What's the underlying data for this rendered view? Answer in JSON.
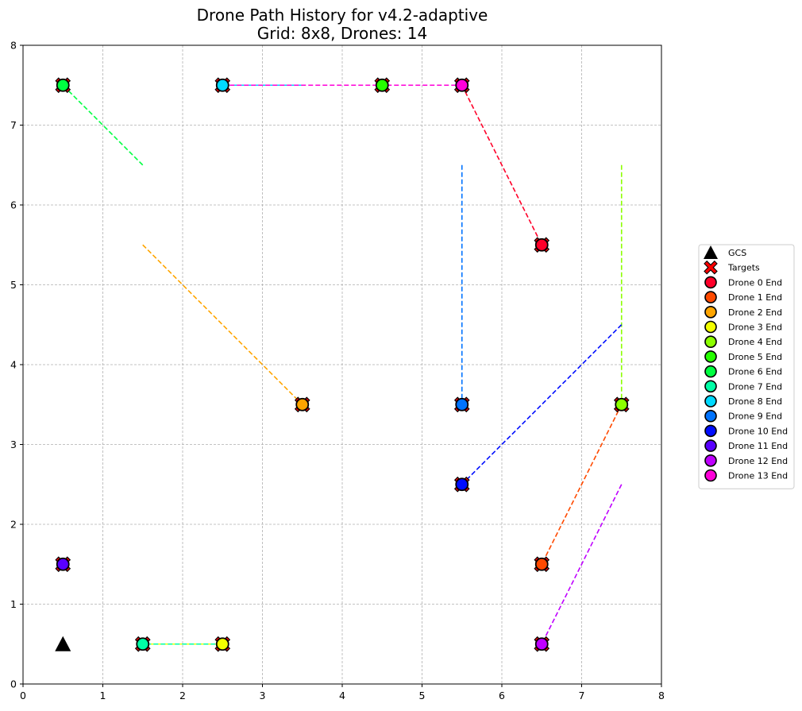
{
  "chart_data": {
    "type": "scatter",
    "title_line1": "Drone Path History for v4.2-adaptive",
    "title_line2": "Grid: 8x8, Drones: 14",
    "xlabel": "",
    "ylabel": "",
    "xlim": [
      0,
      8
    ],
    "ylim": [
      0,
      8
    ],
    "xticks": [
      0,
      1,
      2,
      3,
      4,
      5,
      6,
      7,
      8
    ],
    "yticks": [
      0,
      1,
      2,
      3,
      4,
      5,
      6,
      7,
      8
    ],
    "xtick_labels": [
      "0",
      "1",
      "2",
      "3",
      "4",
      "5",
      "6",
      "7",
      "8"
    ],
    "ytick_labels": [
      "0",
      "1",
      "2",
      "3",
      "4",
      "5",
      "6",
      "7",
      "8"
    ],
    "grid": true,
    "legend_position": "outside right, vertically centered",
    "gcs": {
      "x": 0.5,
      "y": 0.5,
      "color": "#000000",
      "label": "GCS"
    },
    "targets": {
      "label": "Targets",
      "color": "#ff0000",
      "points": [
        [
          0.5,
          7.5
        ],
        [
          2.5,
          7.5
        ],
        [
          4.5,
          7.5
        ],
        [
          5.5,
          7.5
        ],
        [
          6.5,
          5.5
        ],
        [
          3.5,
          3.5
        ],
        [
          5.5,
          3.5
        ],
        [
          7.5,
          3.5
        ],
        [
          5.5,
          2.5
        ],
        [
          0.5,
          1.5
        ],
        [
          6.5,
          1.5
        ],
        [
          1.5,
          0.5
        ],
        [
          2.5,
          0.5
        ],
        [
          6.5,
          0.5
        ]
      ]
    },
    "series": [
      {
        "name": "Drone 0 End",
        "color": "#ff0029",
        "path": [
          [
            5.5,
            7.5
          ],
          [
            6.5,
            5.5
          ]
        ]
      },
      {
        "name": "Drone 1 End",
        "color": "#ff4a00",
        "path": [
          [
            7.5,
            3.5
          ],
          [
            6.5,
            1.5
          ]
        ]
      },
      {
        "name": "Drone 2 End",
        "color": "#ffa500",
        "path": [
          [
            1.5,
            5.5
          ],
          [
            3.5,
            3.5
          ]
        ]
      },
      {
        "name": "Drone 3 End",
        "color": "#f2ff00",
        "path": [
          [
            1.5,
            0.5
          ],
          [
            2.5,
            0.5
          ]
        ]
      },
      {
        "name": "Drone 4 End",
        "color": "#8cff00",
        "path": [
          [
            7.5,
            6.5
          ],
          [
            7.5,
            3.5
          ]
        ]
      },
      {
        "name": "Drone 5 End",
        "color": "#26ff00",
        "path": [
          [
            4.5,
            7.5
          ]
        ]
      },
      {
        "name": "Drone 6 End",
        "color": "#00ff40",
        "path": [
          [
            1.5,
            6.5
          ],
          [
            0.5,
            7.5
          ]
        ]
      },
      {
        "name": "Drone 7 End",
        "color": "#00ffa6",
        "path": [
          [
            2.5,
            0.5
          ],
          [
            1.5,
            0.5
          ]
        ]
      },
      {
        "name": "Drone 8 End",
        "color": "#00d9ff",
        "path": [
          [
            3.5,
            7.5
          ],
          [
            2.5,
            7.5
          ]
        ]
      },
      {
        "name": "Drone 9 End",
        "color": "#0073ff",
        "path": [
          [
            5.5,
            6.5
          ],
          [
            5.5,
            3.5
          ]
        ]
      },
      {
        "name": "Drone 10 End",
        "color": "#000dff",
        "path": [
          [
            7.5,
            4.5
          ],
          [
            5.5,
            2.5
          ]
        ]
      },
      {
        "name": "Drone 11 End",
        "color": "#5900ff",
        "path": [
          [
            0.5,
            1.5
          ]
        ]
      },
      {
        "name": "Drone 12 End",
        "color": "#bf00ff",
        "path": [
          [
            7.5,
            2.5
          ],
          [
            6.5,
            0.5
          ]
        ]
      },
      {
        "name": "Drone 13 End",
        "color": "#ff00d9",
        "path": [
          [
            2.5,
            7.5
          ],
          [
            5.5,
            7.5
          ]
        ]
      }
    ]
  }
}
